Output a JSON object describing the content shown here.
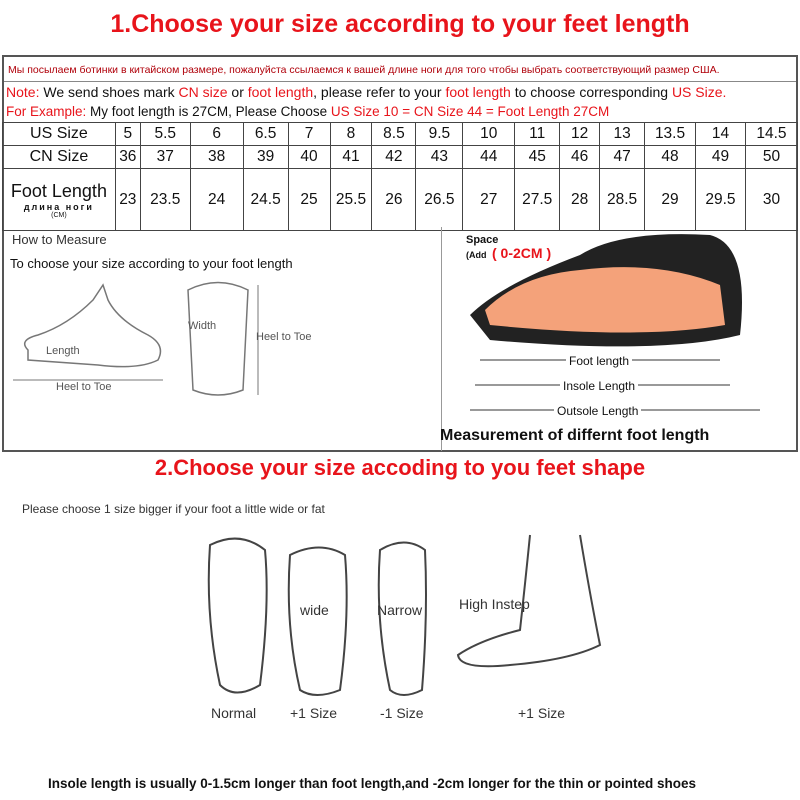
{
  "title1": "1.Choose your size according to your feet length",
  "russian_note": "Мы посылаем ботинки в китайском размере, пожалуйста ссылаемся к вашей длине ноги для того чтобы выбрать соответствующий размер США.",
  "note": {
    "label": "Note:",
    "t1": " We send shoes mark ",
    "r1": "CN size",
    "t2": " or ",
    "r2": "foot length",
    "t3": ", please refer to your ",
    "r3": "foot length",
    "t4": " to choose corresponding ",
    "r4": "US Size."
  },
  "example": {
    "label": "For Example:",
    "t1": " My foot length is 27CM, Please Choose ",
    "r1": "US Size 10 = CN Size 44 = Foot Length 27CM"
  },
  "table": {
    "us_label": "US Size",
    "cn_label": "CN Size",
    "fl_label": "Foot Length",
    "fl_ru": "длина ноги",
    "fl_unit": "(CM)",
    "us": [
      "5",
      "5.5",
      "6",
      "6.5",
      "7",
      "8",
      "8.5",
      "9.5",
      "10",
      "11",
      "12",
      "13",
      "13.5",
      "14",
      "14.5"
    ],
    "cn": [
      "36",
      "37",
      "38",
      "39",
      "40",
      "41",
      "42",
      "43",
      "44",
      "45",
      "46",
      "47",
      "48",
      "49",
      "50"
    ],
    "fl": [
      "23",
      "23.5",
      "24",
      "24.5",
      "25",
      "25.5",
      "26",
      "26.5",
      "27",
      "27.5",
      "28",
      "28.5",
      "29",
      "29.5",
      "30"
    ]
  },
  "measure": {
    "title": "How to Measure",
    "subtitle": "To choose your size according to your foot length",
    "length": "Length",
    "heel_to_toe": "Heel to Toe",
    "width": "Width",
    "heel_to_toe2": "Heel to Toe",
    "space": "Space",
    "add": "(Add",
    "add_range": "( 0-2CM )",
    "foot_length": "Foot length",
    "insole_length": "Insole Length",
    "outsole_length": "Outsole Length",
    "caption": "Measurement of differnt foot length"
  },
  "title2": "2.Choose your size accoding to you feet shape",
  "shape": {
    "hint": "Please choose 1 size bigger if your foot a little wide or fat",
    "wide": "wide",
    "narrow": "Narrow",
    "high_instep": "High Instep",
    "labels": [
      "Normal",
      "+1 Size",
      "-1 Size",
      "+1 Size"
    ]
  },
  "footer": "Insole length is usually 0-1.5cm longer than foot length,and -2cm longer for the thin or pointed shoes",
  "colors": {
    "accent": "#e8141b",
    "russian": "#b0000a"
  }
}
